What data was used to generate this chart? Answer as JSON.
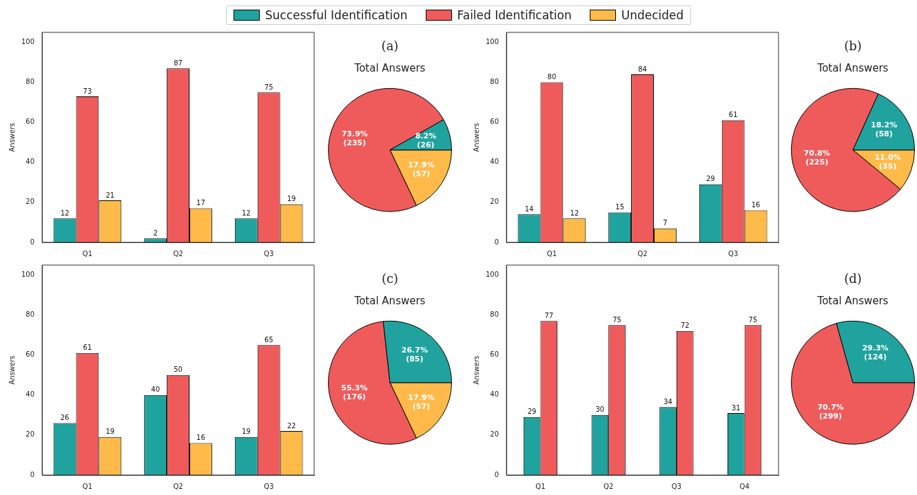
{
  "chart_data": [
    {
      "type": "bar",
      "ylabel": "Answers",
      "categories": [
        "Q1",
        "Q2",
        "Q3"
      ],
      "ylim": [
        0,
        105
      ],
      "yticks": [
        0,
        20,
        40,
        60,
        80,
        100
      ],
      "data_labels": true,
      "legend": "top",
      "series": [
        {
          "name": "Successful Identification",
          "color": "#20a39e",
          "values": [
            12,
            2,
            12
          ]
        },
        {
          "name": "Failed Identification",
          "color": "#ef5b5b",
          "values": [
            73,
            87,
            75
          ]
        },
        {
          "name": "Undecided",
          "color": "#ffba49",
          "values": [
            21,
            17,
            19
          ]
        }
      ]
    },
    {
      "type": "pie",
      "title": "Total Answers",
      "subtitle": "(a)",
      "categories": [
        null,
        null,
        null
      ],
      "values": [
        26,
        235,
        57
      ],
      "colors": [
        "#20a39e",
        "#ef5b5b",
        "#ffba49"
      ],
      "value_labels": [
        "8.2%\n(26)",
        "73.9%\n(235)",
        "17.9%\n(57)"
      ]
    },
    {
      "type": "bar",
      "ylabel": "Answers",
      "categories": [
        "Q1",
        "Q2",
        "Q3"
      ],
      "ylim": [
        0,
        105
      ],
      "yticks": [
        0,
        20,
        40,
        60,
        80,
        100
      ],
      "data_labels": true,
      "series": [
        {
          "name": "Successful Identification",
          "color": "#20a39e",
          "values": [
            14,
            15,
            29
          ]
        },
        {
          "name": "Failed Identification",
          "color": "#ef5b5b",
          "values": [
            80,
            84,
            61
          ]
        },
        {
          "name": "Undecided",
          "color": "#ffba49",
          "values": [
            12,
            7,
            16
          ]
        }
      ]
    },
    {
      "type": "pie",
      "title": "Total Answers",
      "subtitle": "(b)",
      "categories": [
        null,
        null,
        null
      ],
      "values": [
        58,
        225,
        35
      ],
      "colors": [
        "#20a39e",
        "#ef5b5b",
        "#ffba49"
      ],
      "value_labels": [
        "18.2%\n(58)",
        "70.8%\n(225)",
        "11.0%\n(35)"
      ]
    },
    {
      "type": "bar",
      "ylabel": "Answers",
      "categories": [
        "Q1",
        "Q2",
        "Q3"
      ],
      "ylim": [
        0,
        105
      ],
      "yticks": [
        0,
        20,
        40,
        60,
        80,
        100
      ],
      "data_labels": true,
      "series": [
        {
          "name": "Successful Identification",
          "color": "#20a39e",
          "values": [
            26,
            40,
            19
          ]
        },
        {
          "name": "Failed Identification",
          "color": "#ef5b5b",
          "values": [
            61,
            50,
            65
          ]
        },
        {
          "name": "Undecided",
          "color": "#ffba49",
          "values": [
            19,
            16,
            22
          ]
        }
      ]
    },
    {
      "type": "pie",
      "title": "Total Answers",
      "subtitle": "(c)",
      "categories": [
        null,
        null,
        null
      ],
      "values": [
        85,
        176,
        57
      ],
      "colors": [
        "#20a39e",
        "#ef5b5b",
        "#ffba49"
      ],
      "value_labels": [
        "26.7%\n(85)",
        "55.3%\n(176)",
        "17.9%\n(57)"
      ]
    },
    {
      "type": "bar",
      "ylabel": "Answers",
      "categories": [
        "Q1",
        "Q2",
        "Q3",
        "Q4"
      ],
      "ylim": [
        0,
        105
      ],
      "yticks": [
        0,
        20,
        40,
        60,
        80,
        100
      ],
      "data_labels": true,
      "series": [
        {
          "name": "Successful Identification",
          "color": "#20a39e",
          "values": [
            29,
            30,
            34,
            31
          ]
        },
        {
          "name": "Failed Identification",
          "color": "#ef5b5b",
          "values": [
            77,
            75,
            72,
            75
          ]
        }
      ]
    },
    {
      "type": "pie",
      "title": "Total Answers",
      "subtitle": "(d)",
      "categories": [
        null,
        null
      ],
      "values": [
        124,
        299
      ],
      "colors": [
        "#20a39e",
        "#ef5b5b"
      ],
      "value_labels": [
        "29.3%\n(124)",
        "70.7%\n(299)"
      ]
    }
  ]
}
